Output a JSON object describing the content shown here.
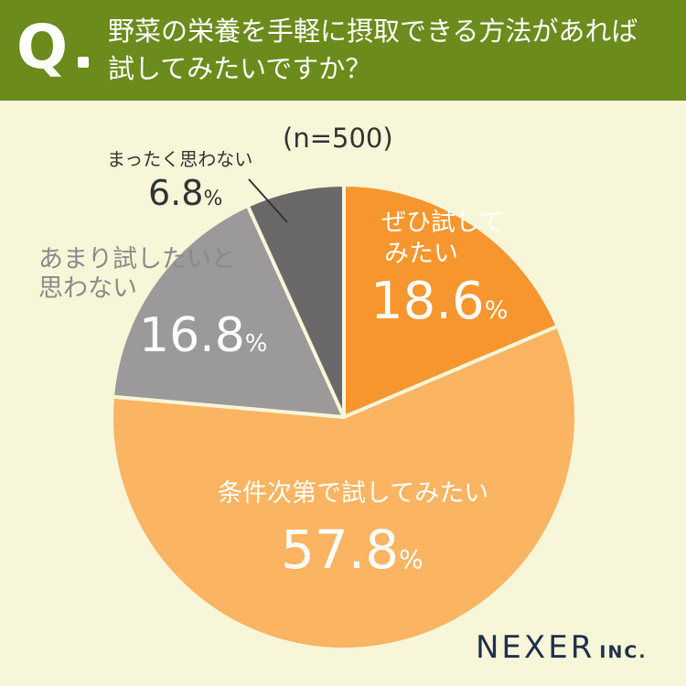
{
  "header": {
    "q_mark": "Q",
    "question_line1": "野菜の栄養を手軽に摂取できる方法があれば",
    "question_line2": "試してみたいですか？"
  },
  "n_label": "(n=500)",
  "chart_data": {
    "type": "pie",
    "start_angle_deg": 0,
    "direction": "clockwise",
    "slices": [
      {
        "label_line1": "ぜひ試して",
        "label_line2": "みたい",
        "value": 18.6,
        "value_text": "18.6",
        "unit": "%",
        "color": "#f7962e",
        "label_color": "#ffffff"
      },
      {
        "label_line1": "条件次第で試してみたい",
        "label_line2": "",
        "value": 57.8,
        "value_text": "57.8",
        "unit": "%",
        "color": "#fbb462",
        "label_color": "#ffffff"
      },
      {
        "label_line1": "あまり試したいと",
        "label_line2": "思わない",
        "value": 16.8,
        "value_text": "16.8",
        "unit": "%",
        "color": "#9b999a",
        "label_color": "#ffffff"
      },
      {
        "label_line1": "まったく思わない",
        "label_line2": "",
        "value": 6.8,
        "value_text": "6.8",
        "unit": "%",
        "color": "#6a6869",
        "label_color": "#333333"
      }
    ]
  },
  "brand": {
    "name": "NEXER",
    "suffix": "INC."
  },
  "colors": {
    "background": "#f7f6d8",
    "header": "#6b8b1c",
    "text_dark": "#333333",
    "brand": "#1f2f4d",
    "outside_label": "#8a8a8a"
  }
}
